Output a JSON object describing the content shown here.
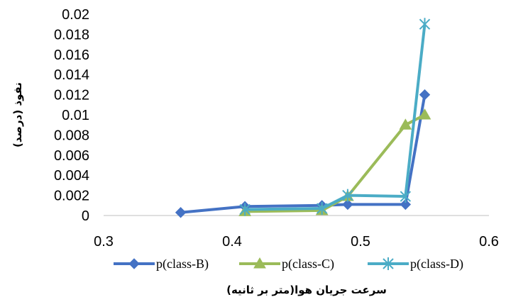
{
  "chart_data": {
    "type": "line",
    "title": "",
    "xlabel": "سرعت جریان هوا(متر بر ثانیه)",
    "ylabel": "نفوذ (درصد)",
    "xlim": [
      0.3,
      0.6
    ],
    "ylim": [
      0,
      0.02
    ],
    "x_ticks": [
      "0.3",
      "0.4",
      "0.5",
      "0.6"
    ],
    "y_ticks": [
      "0",
      "0.002",
      "0.004",
      "0.006",
      "0.008",
      "0.01",
      "0.012",
      "0.014",
      "0.016",
      "0.018",
      "0.02"
    ],
    "grid": false,
    "legend_position": "bottom",
    "series": [
      {
        "name": "p(class-B)",
        "color": "#4472C4",
        "marker": "diamond",
        "x": [
          0.36,
          0.41,
          0.47,
          0.49,
          0.535,
          0.55
        ],
        "y": [
          0.0003,
          0.0009,
          0.001,
          0.0011,
          0.0011,
          0.012
        ]
      },
      {
        "name": "p(class-C)",
        "color": "#9BBB59",
        "marker": "triangle",
        "x": [
          0.41,
          0.47,
          0.49,
          0.535,
          0.55
        ],
        "y": [
          0.0004,
          0.0005,
          0.0019,
          0.009,
          0.01
        ]
      },
      {
        "name": "p(class-D)",
        "color": "#4BACC6",
        "marker": "star",
        "x": [
          0.41,
          0.47,
          0.49,
          0.535,
          0.55
        ],
        "y": [
          0.0006,
          0.0007,
          0.002,
          0.0019,
          0.019
        ]
      }
    ]
  }
}
